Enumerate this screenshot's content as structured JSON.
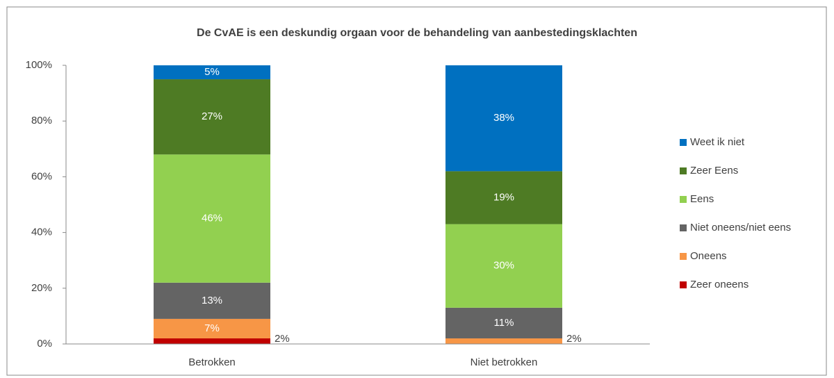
{
  "chart_data": {
    "type": "stacked_bar",
    "title": "De CvAE is een deskundig orgaan voor de behandeling van aanbestedingsklachten",
    "categories": [
      "Betrokken",
      "Niet betrokken"
    ],
    "series": [
      {
        "name": "Zeer oneens",
        "color": "#c00000",
        "values": [
          2,
          0
        ],
        "value_labels": [
          "2%",
          null
        ]
      },
      {
        "name": "Oneens",
        "color": "#f79646",
        "values": [
          7,
          2
        ],
        "value_labels": [
          "7%",
          "2%"
        ]
      },
      {
        "name": "Niet oneens/niet eens",
        "color": "#646464",
        "values": [
          13,
          11
        ],
        "value_labels": [
          "13%",
          "11%"
        ]
      },
      {
        "name": "Eens",
        "color": "#92d050",
        "values": [
          46,
          30
        ],
        "value_labels": [
          "46%",
          "30%"
        ]
      },
      {
        "name": "Zeer Eens",
        "color": "#4e7b24",
        "values": [
          27,
          19
        ],
        "value_labels": [
          "27%",
          "19%"
        ]
      },
      {
        "name": "Weet ik niet",
        "color": "#0070c0",
        "values": [
          5,
          38
        ],
        "value_labels": [
          "5%",
          "38%"
        ]
      }
    ],
    "ylim": [
      0,
      100
    ],
    "yticks": [
      {
        "value": 0,
        "label": "0%"
      },
      {
        "value": 20,
        "label": "20%"
      },
      {
        "value": 40,
        "label": "40%"
      },
      {
        "value": 60,
        "label": "60%"
      },
      {
        "value": 80,
        "label": "80%"
      },
      {
        "value": 100,
        "label": "100%"
      }
    ],
    "legend": "right"
  }
}
